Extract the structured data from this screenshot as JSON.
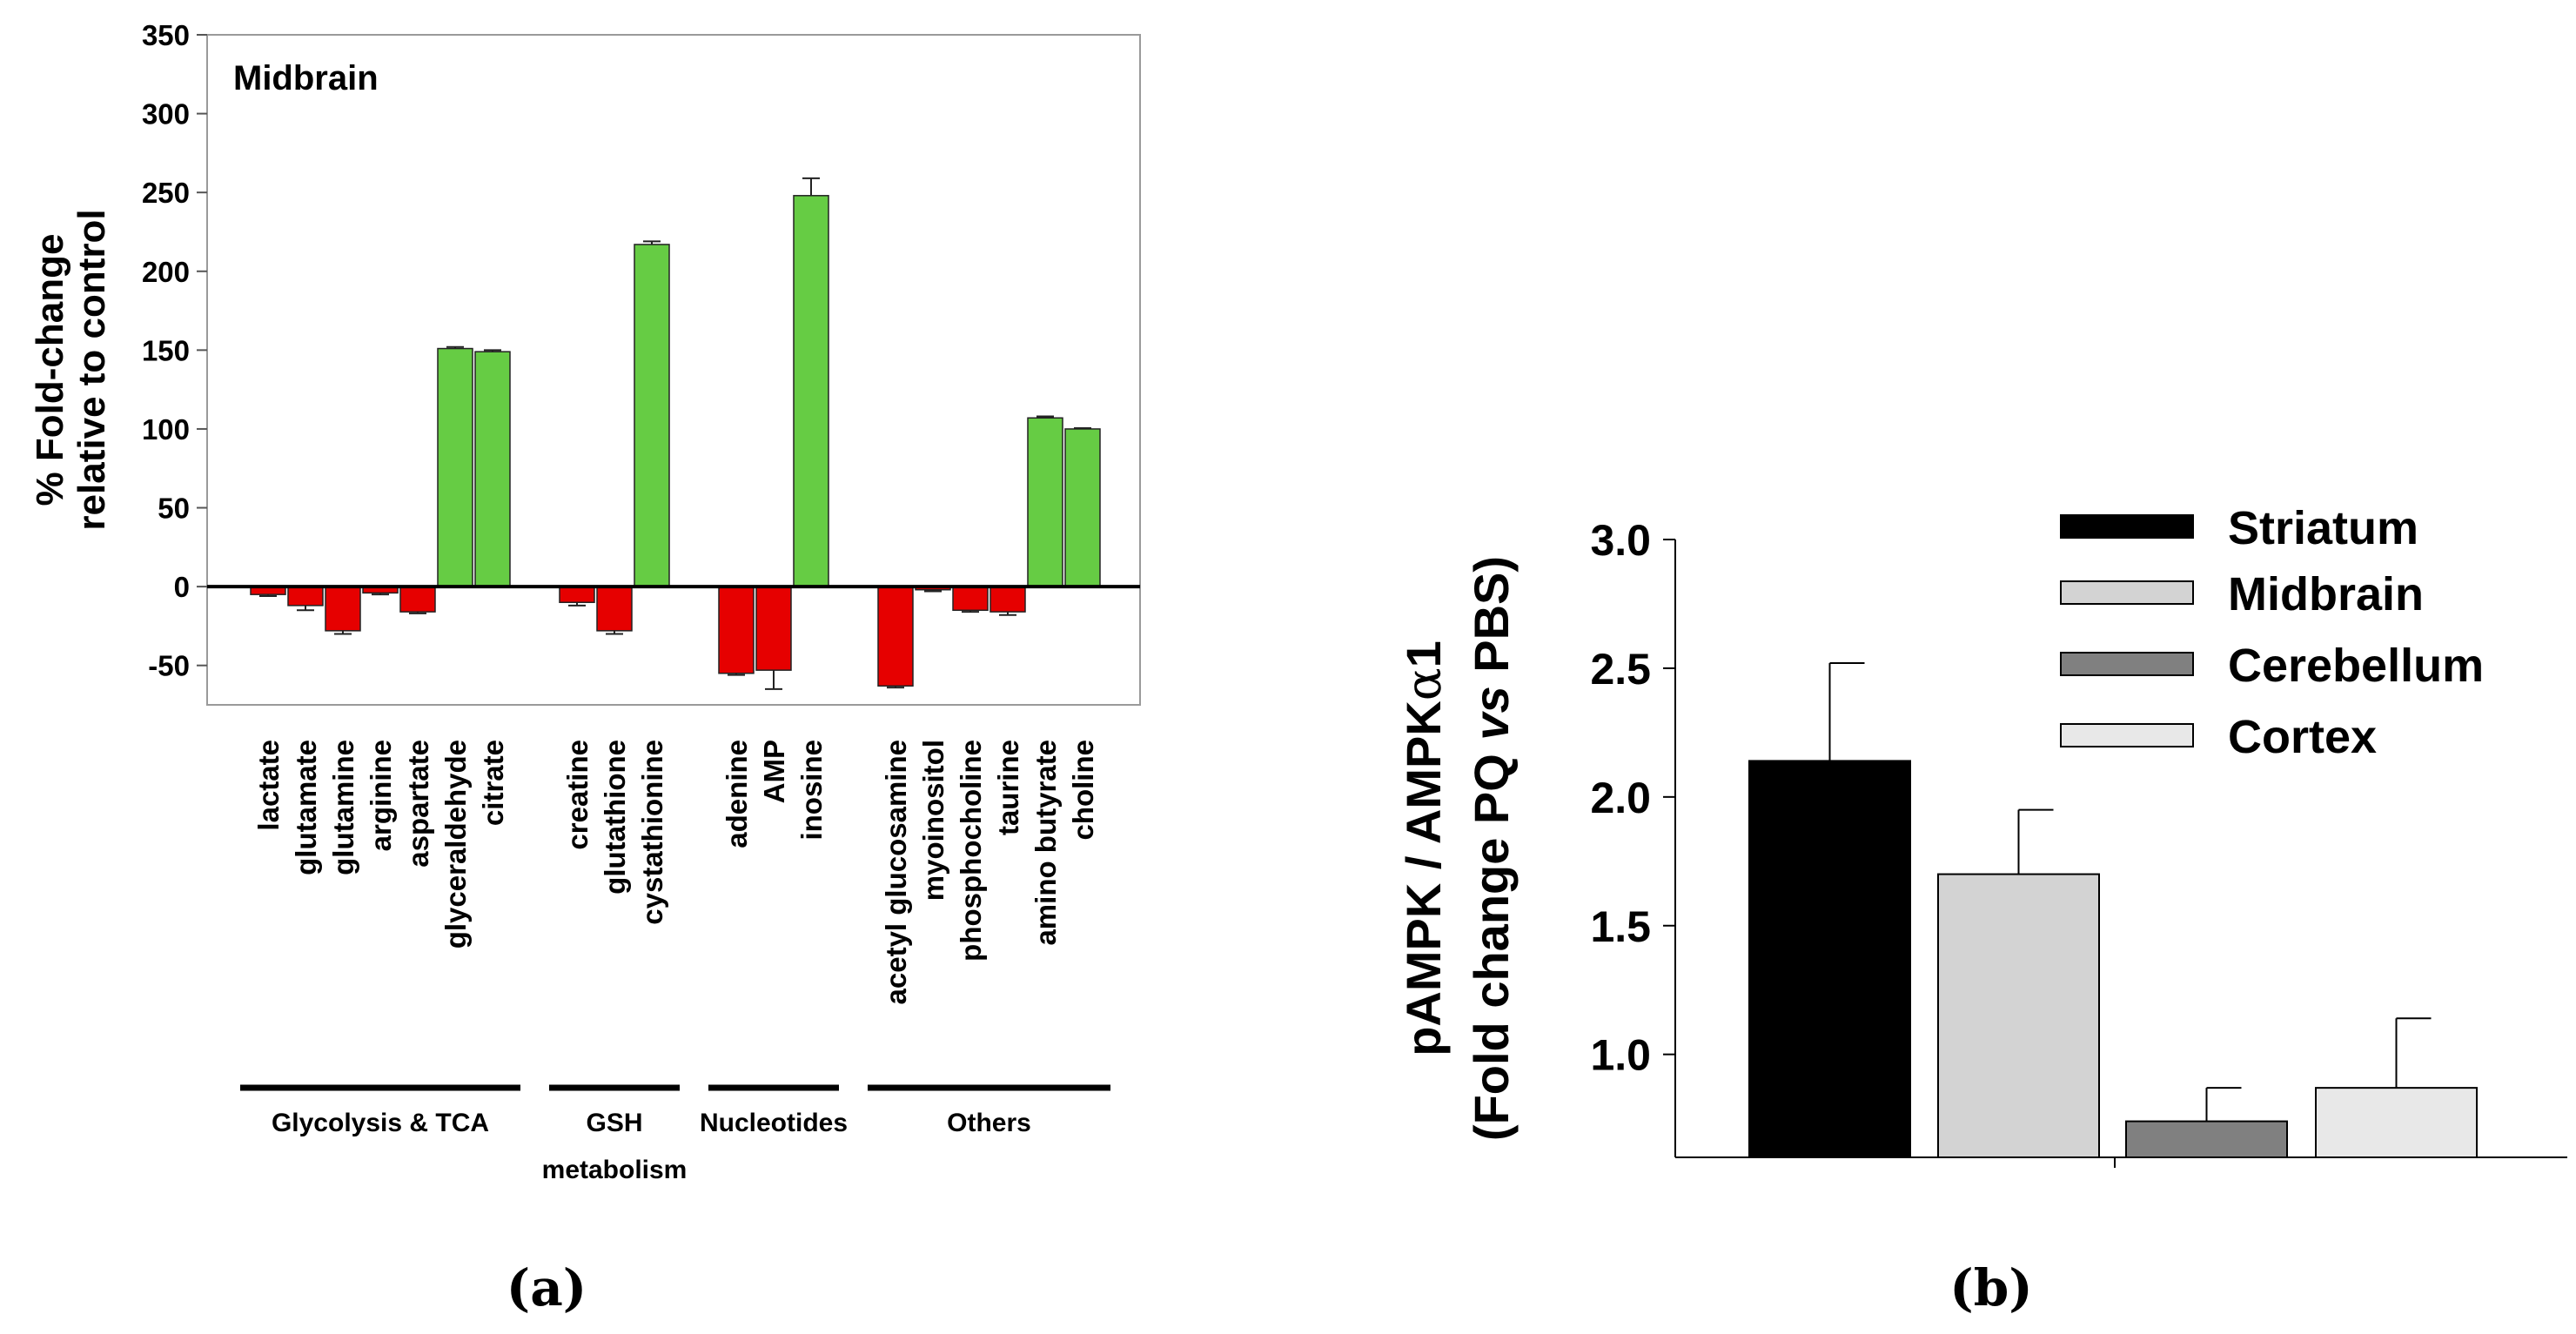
{
  "chart_data": [
    {
      "panel": "(a)",
      "type": "bar",
      "title": "Midbrain",
      "ylabel": "% Fold-change\nrelative to control",
      "xlabel": "",
      "ylim": [
        -75,
        350
      ],
      "yticks": [
        -50,
        0,
        50,
        100,
        150,
        200,
        250,
        300,
        350
      ],
      "categories": [
        "lactate",
        "glutamate",
        "glutamine",
        "arginine",
        "aspartate",
        "glyceraldehyde",
        "citrate",
        "creatine",
        "glutathione",
        "cystathionine",
        "adenine",
        "AMP",
        "inosine",
        "acetyl glucosamine",
        "myoinositol",
        "phosphocholine",
        "taurine",
        "amino butyrate",
        "choline"
      ],
      "values": [
        -5,
        -12,
        -28,
        -4,
        -16,
        151,
        149,
        -10,
        -28,
        217,
        -55,
        -53,
        248,
        -63,
        -2,
        -15,
        -16,
        107,
        100
      ],
      "errors": [
        1,
        3,
        2,
        1,
        1,
        1,
        1,
        2,
        2,
        2,
        1,
        12,
        11,
        1,
        1,
        1,
        2,
        1,
        0.5
      ],
      "groups": [
        {
          "label": "Glycolysis & TCA",
          "count": 7
        },
        {
          "label": "GSH\nmetabolism",
          "count": 3
        },
        {
          "label": "Nucleotides",
          "count": 3
        },
        {
          "label": "Others",
          "count": 6
        }
      ],
      "colors": {
        "decrease": "#e60000",
        "increase": "#66cc44"
      },
      "caption": "(a)"
    },
    {
      "panel": "(b)",
      "type": "bar",
      "title": "",
      "ylabel_parts": [
        "pAMPK / AMPK",
        "α",
        "1"
      ],
      "ylabel2_parts": [
        "(Fold change PQ ",
        "vs",
        " PBS)"
      ],
      "ylim": [
        0.6,
        3.0
      ],
      "yticks": [
        "1.0",
        "1.5",
        "2.0",
        "2.5",
        "3.0"
      ],
      "categories": [
        "Striatum",
        "Midbrain",
        "Cerebellum",
        "Cortex"
      ],
      "values": [
        2.14,
        1.7,
        0.74,
        0.87
      ],
      "errors": [
        0.38,
        0.25,
        0.13,
        0.27
      ],
      "colors": [
        "#000000",
        "#d3d3d3",
        "#808080",
        "#e8e8e8"
      ],
      "legend": [
        "Striatum",
        "Midbrain",
        "Cerebellum",
        "Cortex"
      ],
      "legend_position": "top-right",
      "caption": "(b)"
    }
  ]
}
